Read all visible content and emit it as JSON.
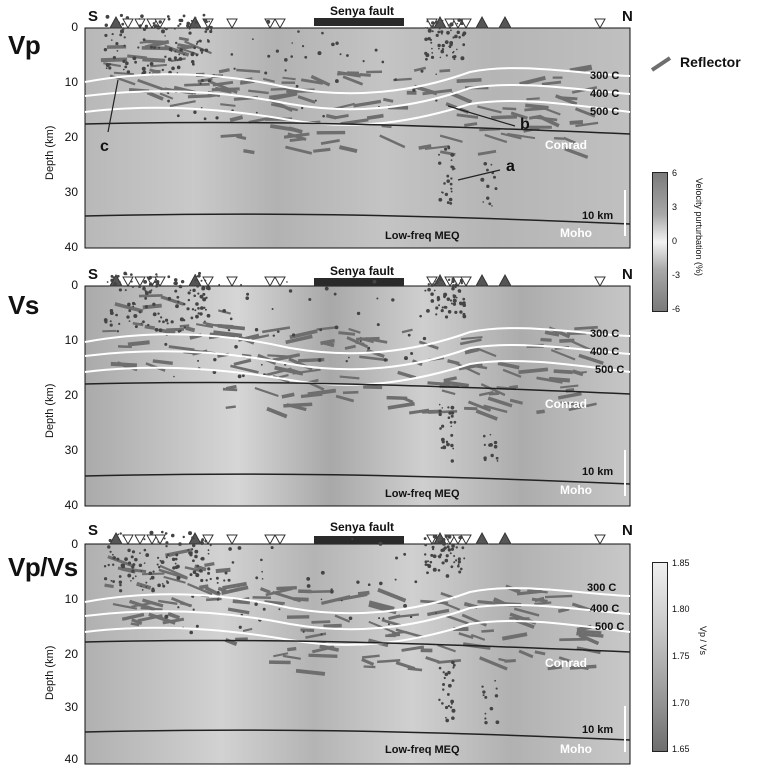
{
  "panels": [
    {
      "id": "vp",
      "title": "Vp",
      "south": "S",
      "north": "N",
      "fault": "Senya fault",
      "ylabel": "Depth (km)",
      "yticks": [
        "0",
        "10",
        "20",
        "30",
        "40"
      ],
      "isotherms": [
        "300 C",
        "400 C",
        "500 C"
      ],
      "conrad": "Conrad",
      "moho": "Moho",
      "scale": "10 km",
      "lfe": "Low-freq MEQ"
    },
    {
      "id": "vs",
      "title": "Vs",
      "south": "S",
      "north": "N",
      "fault": "Senya fault",
      "ylabel": "Depth (km)",
      "yticks": [
        "0",
        "10",
        "20",
        "30",
        "40"
      ],
      "isotherms": [
        "300 C",
        "400 C",
        "500 C"
      ],
      "conrad": "Conrad",
      "moho": "Moho",
      "scale": "10 km",
      "lfe": "Low-freq MEQ"
    },
    {
      "id": "vpvs",
      "title": "Vp/Vs",
      "south": "S",
      "north": "N",
      "fault": "Senya fault",
      "ylabel": "Depth (km)",
      "yticks": [
        "0",
        "10",
        "20",
        "30",
        "40"
      ],
      "isotherms": [
        "300 C",
        "400 C",
        "500 C"
      ],
      "conrad": "Conrad",
      "moho": "Moho",
      "scale": "10 km",
      "lfe": "Low-freq MEQ"
    }
  ],
  "annotations": {
    "a": "a",
    "b": "b",
    "c": "c"
  },
  "legend": {
    "reflector": "Reflector"
  },
  "colorbar_vel": {
    "label": "Velocity purturbation (%)",
    "ticks": [
      "6",
      "3",
      "0",
      "-3",
      "-6"
    ]
  },
  "colorbar_vpvs": {
    "label": "Vp / Vs",
    "ticks": [
      "1.85",
      "1.80",
      "1.75",
      "1.70",
      "1.65"
    ]
  },
  "colors": {
    "grey_bg": "#bdbdbd",
    "isotherm": "#ffffff",
    "reflector": "#6e6e6e",
    "ink": "#111111"
  }
}
